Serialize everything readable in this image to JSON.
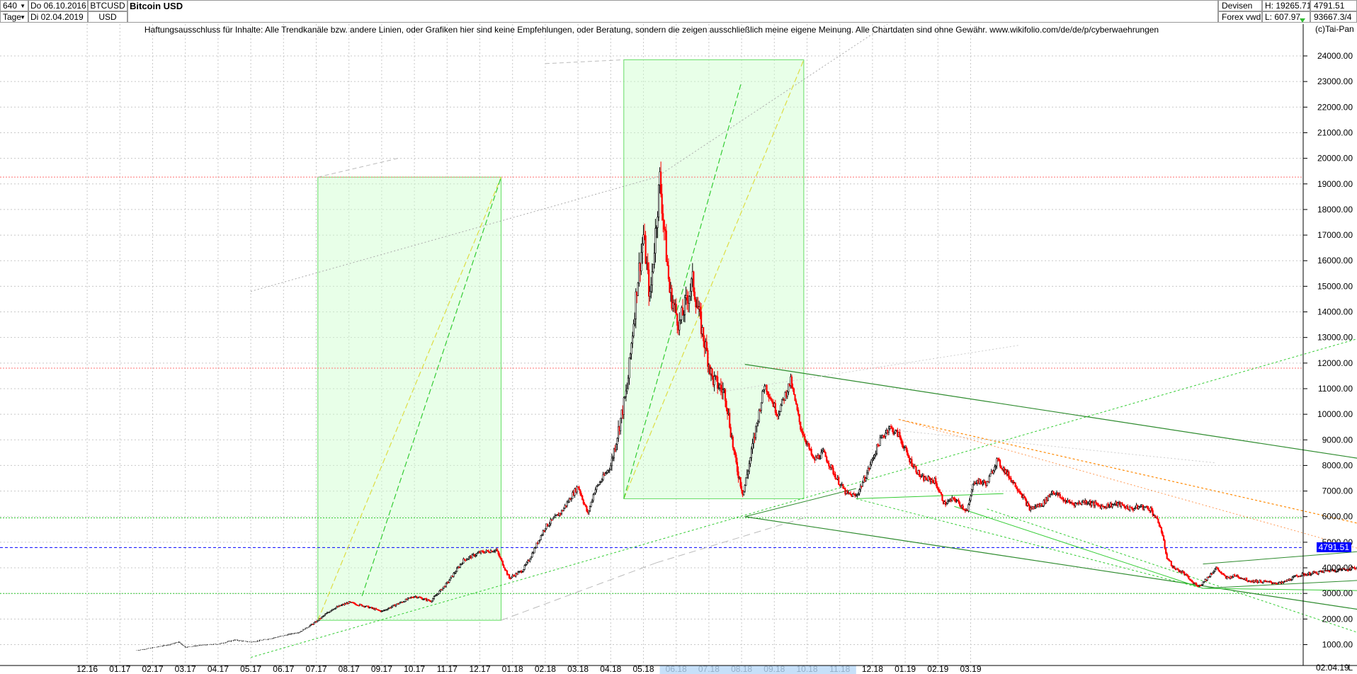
{
  "header": {
    "period_value": "640",
    "interval": "Tage",
    "start_date": "Do 06.10.2016",
    "end_date": "Di 02.04.2019",
    "symbol": "BTCUSD",
    "currency": "USD",
    "title": "Bitcoin USD",
    "market": "Devisen",
    "source": "Forex vwd",
    "high_label": "H: 19265.71",
    "low_label": "L: 607.97",
    "last_price": "4791.51",
    "last_change": "93667.3/4"
  },
  "disclaimer": "Haftungsausschluss für Inhalte: Alle Trendkanäle bzw. andere Linien, oder Grafiken hier sind keine Empfehlungen, oder Beratung, sondern die zeigen ausschließlich meine eigene Meinung. Alle Chartdaten sind ohne Gewähr.  www.wikifolio.com/de/de/p/cyberwaehrungen",
  "copyright": "(c)Tai-Pan",
  "current_price_label": "4791.51",
  "bottom_date": "02.04.19",
  "bottom_right": "L",
  "colors": {
    "up_candle": "#000000",
    "down_candle": "#ff0000",
    "grid": "#c8c8c8",
    "current_line": "#0000ff",
    "channel_dark": "#2e8b2e",
    "channel_light": "#33dd33",
    "fib_box": "#ccffcc",
    "resistance": "#ff7070",
    "orange": "#ff8800"
  },
  "chart_data": {
    "type": "candlestick",
    "title": "Bitcoin USD",
    "ylabel": "USD",
    "ylim": [
      500,
      25000
    ],
    "y_ticks": [
      1000,
      2000,
      3000,
      4000,
      5000,
      6000,
      7000,
      8000,
      9000,
      10000,
      11000,
      12000,
      13000,
      14000,
      15000,
      16000,
      17000,
      18000,
      19000,
      20000,
      21000,
      22000,
      23000,
      24000
    ],
    "x_ticks": [
      "12.16",
      "01.17",
      "02.17",
      "03.17",
      "04.17",
      "05.17",
      "06.17",
      "07.17",
      "08.17",
      "09.17",
      "10.17",
      "11.17",
      "12.17",
      "01.18",
      "02.18",
      "03.18",
      "04.18",
      "05.18",
      "06.18",
      "07.18",
      "08.18",
      "09.18",
      "10.18",
      "11.18",
      "12.18",
      "01.19",
      "02.19",
      "03.19"
    ],
    "grid": true,
    "horizontal_levels": [
      {
        "value": 19265.71,
        "style": "dotted-red"
      },
      {
        "value": 11800,
        "style": "dotted-red"
      },
      {
        "value": 5950,
        "style": "dotted-green"
      },
      {
        "value": 3000,
        "style": "dotted-green"
      },
      {
        "value": 4791.51,
        "style": "dashed-blue"
      }
    ],
    "price_path": [
      {
        "m": 2.0,
        "p": 770
      },
      {
        "m": 2.6,
        "p": 900
      },
      {
        "m": 3.0,
        "p": 1000
      },
      {
        "m": 3.3,
        "p": 1100
      },
      {
        "m": 3.5,
        "p": 900
      },
      {
        "m": 4.0,
        "p": 980
      },
      {
        "m": 4.5,
        "p": 1020
      },
      {
        "m": 5.0,
        "p": 1180
      },
      {
        "m": 5.5,
        "p": 1100
      },
      {
        "m": 6.0,
        "p": 1210
      },
      {
        "m": 6.5,
        "p": 1350
      },
      {
        "m": 7.0,
        "p": 1500
      },
      {
        "m": 7.5,
        "p": 1900
      },
      {
        "m": 8.0,
        "p": 2400
      },
      {
        "m": 8.5,
        "p": 2650
      },
      {
        "m": 9.0,
        "p": 2500
      },
      {
        "m": 9.5,
        "p": 2300
      },
      {
        "m": 10.0,
        "p": 2600
      },
      {
        "m": 10.5,
        "p": 2900
      },
      {
        "m": 11.0,
        "p": 2700
      },
      {
        "m": 11.5,
        "p": 3400
      },
      {
        "m": 12.0,
        "p": 4300
      },
      {
        "m": 12.5,
        "p": 4600
      },
      {
        "m": 13.0,
        "p": 4700
      },
      {
        "m": 13.4,
        "p": 3600
      },
      {
        "m": 13.8,
        "p": 3900
      },
      {
        "m": 14.0,
        "p": 4300
      },
      {
        "m": 14.5,
        "p": 5600
      },
      {
        "m": 15.0,
        "p": 6200
      },
      {
        "m": 15.5,
        "p": 7200
      },
      {
        "m": 15.8,
        "p": 6100
      },
      {
        "m": 16.0,
        "p": 7000
      },
      {
        "m": 16.5,
        "p": 8000
      },
      {
        "m": 17.0,
        "p": 11000
      },
      {
        "m": 17.3,
        "p": 15000
      },
      {
        "m": 17.5,
        "p": 17000
      },
      {
        "m": 17.7,
        "p": 14500
      },
      {
        "m": 18.0,
        "p": 19200
      },
      {
        "m": 18.3,
        "p": 14800
      },
      {
        "m": 18.6,
        "p": 13500
      },
      {
        "m": 19.0,
        "p": 15200
      },
      {
        "m": 19.3,
        "p": 13200
      },
      {
        "m": 19.6,
        "p": 11400
      },
      {
        "m": 20.0,
        "p": 10800
      },
      {
        "m": 20.3,
        "p": 8200
      },
      {
        "m": 20.55,
        "p": 6900
      },
      {
        "m": 20.8,
        "p": 8500
      },
      {
        "m": 21.2,
        "p": 11200
      },
      {
        "m": 21.6,
        "p": 10000
      },
      {
        "m": 22.0,
        "p": 11300
      },
      {
        "m": 22.3,
        "p": 9500
      },
      {
        "m": 22.7,
        "p": 8200
      },
      {
        "m": 23.0,
        "p": 8500
      },
      {
        "m": 23.4,
        "p": 7500
      },
      {
        "m": 23.7,
        "p": 6900
      },
      {
        "m": 24.0,
        "p": 6800
      },
      {
        "m": 24.3,
        "p": 7600
      },
      {
        "m": 24.7,
        "p": 8900
      },
      {
        "m": 25.0,
        "p": 9500
      },
      {
        "m": 25.3,
        "p": 9200
      },
      {
        "m": 25.6,
        "p": 8300
      },
      {
        "m": 26.0,
        "p": 7500
      },
      {
        "m": 26.4,
        "p": 7400
      },
      {
        "m": 26.7,
        "p": 6500
      },
      {
        "m": 27.0,
        "p": 6700
      },
      {
        "m": 27.4,
        "p": 6200
      },
      {
        "m": 27.6,
        "p": 7400
      },
      {
        "m": 28.0,
        "p": 7300
      },
      {
        "m": 28.3,
        "p": 8200
      },
      {
        "m": 28.6,
        "p": 7700
      },
      {
        "m": 29.0,
        "p": 7000
      },
      {
        "m": 29.3,
        "p": 6300
      },
      {
        "m": 29.7,
        "p": 6500
      },
      {
        "m": 30.0,
        "p": 7000
      },
      {
        "m": 30.4,
        "p": 6600
      },
      {
        "m": 30.7,
        "p": 6500
      },
      {
        "m": 31.0,
        "p": 6600
      },
      {
        "m": 31.5,
        "p": 6400
      },
      {
        "m": 32.0,
        "p": 6500
      },
      {
        "m": 32.4,
        "p": 6300
      },
      {
        "m": 32.7,
        "p": 6400
      },
      {
        "m": 33.0,
        "p": 6300
      },
      {
        "m": 33.3,
        "p": 5600
      },
      {
        "m": 33.5,
        "p": 4400
      },
      {
        "m": 33.7,
        "p": 4000
      },
      {
        "m": 34.0,
        "p": 3800
      },
      {
        "m": 34.3,
        "p": 3400
      },
      {
        "m": 34.5,
        "p": 3300
      },
      {
        "m": 34.8,
        "p": 3700
      },
      {
        "m": 35.0,
        "p": 4000
      },
      {
        "m": 35.3,
        "p": 3600
      },
      {
        "m": 35.6,
        "p": 3700
      },
      {
        "m": 36.0,
        "p": 3500
      },
      {
        "m": 36.5,
        "p": 3450
      },
      {
        "m": 37.0,
        "p": 3400
      },
      {
        "m": 37.5,
        "p": 3700
      },
      {
        "m": 38.0,
        "p": 3800
      },
      {
        "m": 38.5,
        "p": 3900
      },
      {
        "m": 39.0,
        "p": 3950
      },
      {
        "m": 39.5,
        "p": 4050
      },
      {
        "m": 39.9,
        "p": 4150
      },
      {
        "m": 40.0,
        "p": 4790
      }
    ]
  }
}
